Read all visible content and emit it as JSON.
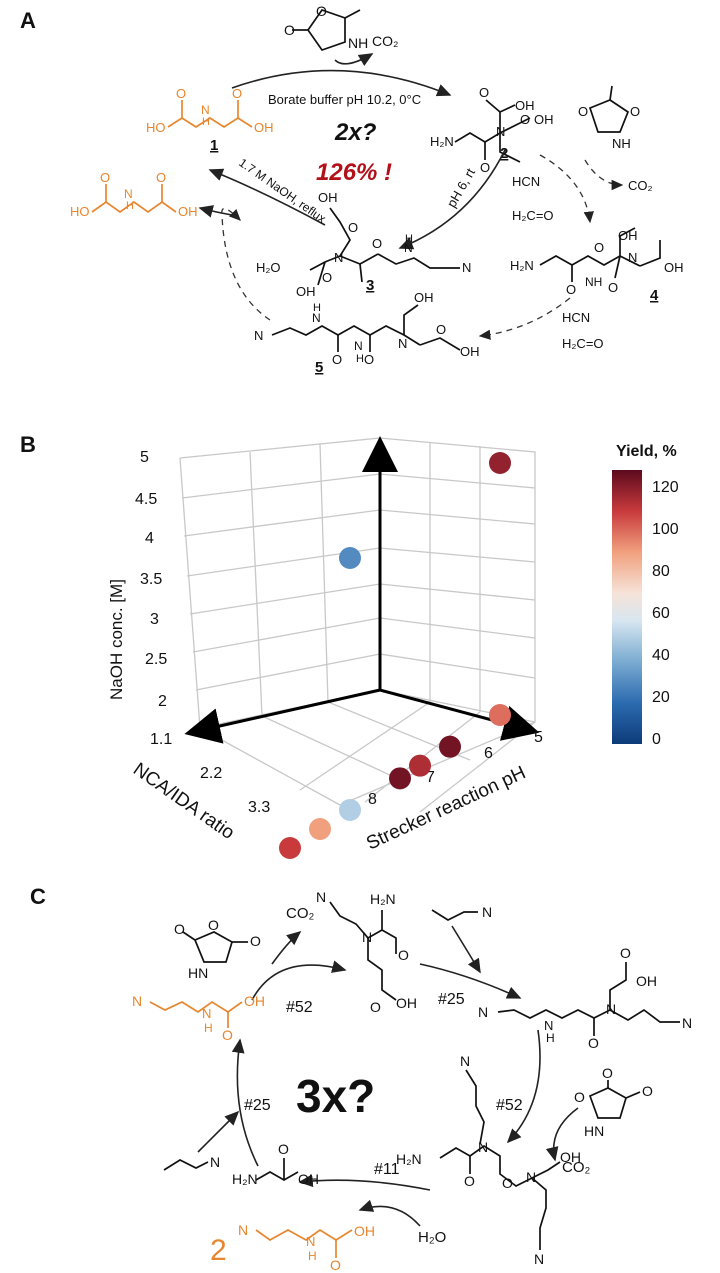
{
  "panel_a": {
    "label": "A",
    "big_question": "2x?",
    "yield_text": "126% !",
    "reaction_borate": "Borate buffer pH 10.2, 0°C",
    "reaction_strecker": "pH 6, rt",
    "reaction_hydrolysis": "1.7 M NaOH, reflux",
    "co2": "CO₂",
    "hcn": "HCN",
    "h2co": "H₂C=O",
    "h2o": "H₂O",
    "nh": "NH",
    "oh": "OH",
    "ho": "HO",
    "h2n": "H₂N",
    "n": "N",
    "h": "H",
    "o": "O",
    "compound_labels": [
      "1",
      "2",
      "3",
      "4",
      "5"
    ]
  },
  "panel_b": {
    "label": "B",
    "colorbar_title": "Yield, %",
    "colorbar_ticks": [
      "120",
      "100",
      "80",
      "60",
      "40",
      "20",
      "0"
    ],
    "colors": {
      "low": "#2c5fa0",
      "mid": "#f2f2f2",
      "high": "#8b0f23"
    },
    "chart_data": {
      "type": "scatter",
      "x_label": "NCA/IDA ratio",
      "y_label": "Strecker reaction pH",
      "z_label": "NaOH conc. [M]",
      "x_ticks": [
        "1.1",
        "2.2",
        "3.3"
      ],
      "y_ticks": [
        "5",
        "6",
        "7",
        "8"
      ],
      "z_ticks": [
        "5",
        "4.5",
        "4",
        "3.5",
        "3",
        "2.5",
        "2"
      ],
      "points": [
        {
          "ratio": 1.1,
          "ph": 8,
          "naoh": 5,
          "yield": 30
        },
        {
          "ratio": 1.1,
          "ph": 5,
          "naoh": 5,
          "yield": 120
        },
        {
          "ratio": 1.1,
          "ph": 8,
          "naoh": 2,
          "yield": 52
        },
        {
          "ratio": 2.2,
          "ph": 8,
          "naoh": 2,
          "yield": 90
        },
        {
          "ratio": 3.3,
          "ph": 8,
          "naoh": 2,
          "yield": 110
        },
        {
          "ratio": 1.1,
          "ph": 7,
          "naoh": 2,
          "yield": 126
        },
        {
          "ratio": 1.1,
          "ph": 6,
          "naoh": 2,
          "yield": 126
        },
        {
          "ratio": 2.2,
          "ph": 6,
          "naoh": 2,
          "yield": 115
        },
        {
          "ratio": 1.1,
          "ph": 5,
          "naoh": 2,
          "yield": 100
        }
      ]
    }
  },
  "panel_c": {
    "label": "C",
    "big_question": "3x?",
    "step_52a": "#52",
    "step_52b": "#52",
    "step_25a": "#25",
    "step_25b": "#25",
    "step_11": "#11",
    "co2": "CO₂",
    "h2o": "H₂O",
    "product_number": "2",
    "nh": "NH",
    "hn": "HN",
    "oh": "OH",
    "h2n": "H₂N",
    "n": "N",
    "h": "H",
    "o": "O"
  }
}
